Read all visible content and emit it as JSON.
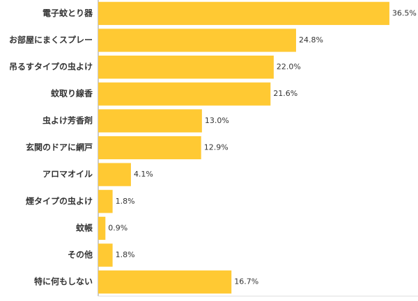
{
  "chart_data": {
    "type": "bar",
    "categories": [
      "電子蚊とり器",
      "お部屋にまくスプレー",
      "吊るすタイプの虫よけ",
      "蚊取り線香",
      "虫よけ芳香剤",
      "玄関のドアに網戸",
      "アロマオイル",
      "煙タイプの虫よけ",
      "蚊帳",
      "その他",
      "特に何もしない"
    ],
    "values": [
      36.5,
      24.8,
      22.0,
      21.6,
      13.0,
      12.9,
      4.1,
      1.8,
      0.9,
      1.8,
      16.7
    ],
    "value_labels": [
      "36.5%",
      "24.8%",
      "22.0%",
      "21.6%",
      "13.0%",
      "12.9%",
      "4.1%",
      "1.8%",
      "0.9%",
      "1.8%",
      "16.7%"
    ],
    "color": "#ffc933",
    "xlim": [
      0,
      40
    ]
  }
}
